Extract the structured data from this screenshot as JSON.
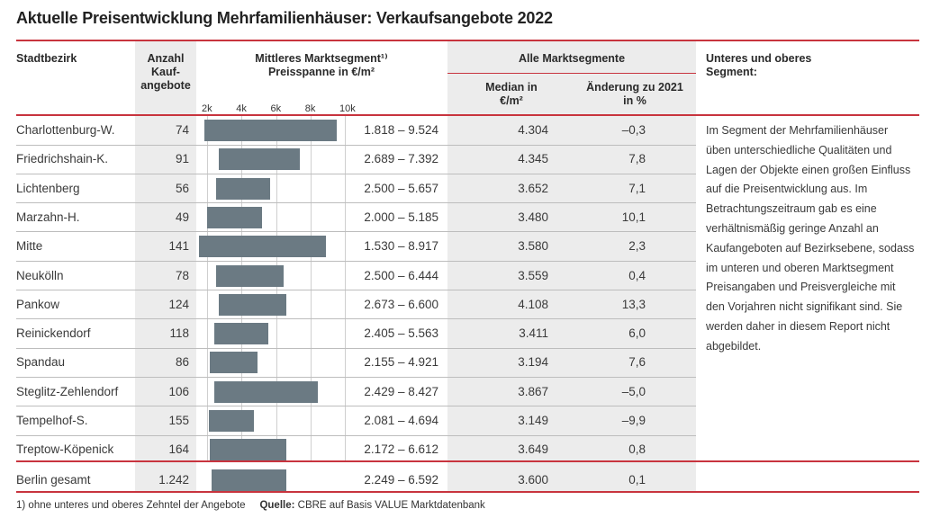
{
  "title": "Aktuelle Preisentwicklung Mehrfamilienhäuser: Verkaufsangebote 2022",
  "headers": {
    "district": "Stadtbezirk",
    "count": "Anzahl Kauf-angebote",
    "range_line1": "Mittleres Marktsegment¹⁾",
    "range_line2": "Preisspanne in €/m²",
    "all_segments": "Alle Marktsegmente",
    "median": "Median in €/m²",
    "change": "Änderung zu 2021 in %",
    "note": "Unteres und oberes Segment:"
  },
  "axis_ticks": [
    "2k",
    "4k",
    "6k",
    "8k",
    "10k"
  ],
  "rows": [
    {
      "name": "Charlottenburg-W.",
      "count": "74",
      "range": "1.818 – 9.524",
      "median": "4.304",
      "change": "–0,3"
    },
    {
      "name": "Friedrichshain-K.",
      "count": "91",
      "range": "2.689 – 7.392",
      "median": "4.345",
      "change": "7,8"
    },
    {
      "name": "Lichtenberg",
      "count": "56",
      "range": "2.500 – 5.657",
      "median": "3.652",
      "change": "7,1"
    },
    {
      "name": "Marzahn-H.",
      "count": "49",
      "range": "2.000 – 5.185",
      "median": "3.480",
      "change": "10,1"
    },
    {
      "name": "Mitte",
      "count": "141",
      "range": "1.530 – 8.917",
      "median": "3.580",
      "change": "2,3"
    },
    {
      "name": "Neukölln",
      "count": "78",
      "range": "2.500 – 6.444",
      "median": "3.559",
      "change": "0,4"
    },
    {
      "name": "Pankow",
      "count": "124",
      "range": "2.673 – 6.600",
      "median": "4.108",
      "change": "13,3"
    },
    {
      "name": "Reinickendorf",
      "count": "118",
      "range": "2.405 – 5.563",
      "median": "3.411",
      "change": "6,0"
    },
    {
      "name": "Spandau",
      "count": "86",
      "range": "2.155 – 4.921",
      "median": "3.194",
      "change": "7,6"
    },
    {
      "name": "Steglitz-Zehlendorf",
      "count": "106",
      "range": "2.429 – 8.427",
      "median": "3.867",
      "change": "–5,0"
    },
    {
      "name": "Tempelhof-S.",
      "count": "155",
      "range": "2.081 – 4.694",
      "median": "3.149",
      "change": "–9,9"
    },
    {
      "name": "Treptow-Köpenick",
      "count": "164",
      "range": "2.172 – 6.612",
      "median": "3.649",
      "change": "0,8"
    },
    {
      "name": "Berlin gesamt",
      "count": "1.242",
      "range": "2.249 – 6.592",
      "median": "3.600",
      "change": "0,1"
    }
  ],
  "chart_data": {
    "type": "bar",
    "categories": [
      "Charlottenburg-W.",
      "Friedrichshain-K.",
      "Lichtenberg",
      "Marzahn-H.",
      "Mitte",
      "Neukölln",
      "Pankow",
      "Reinickendorf",
      "Spandau",
      "Steglitz-Zehlendorf",
      "Tempelhof-S.",
      "Treptow-Köpenick",
      "Berlin gesamt"
    ],
    "ranges": [
      [
        1818,
        9524
      ],
      [
        2689,
        7392
      ],
      [
        2500,
        5657
      ],
      [
        2000,
        5185
      ],
      [
        1530,
        8917
      ],
      [
        2500,
        6444
      ],
      [
        2673,
        6600
      ],
      [
        2405,
        5563
      ],
      [
        2155,
        4921
      ],
      [
        2429,
        8427
      ],
      [
        2081,
        4694
      ],
      [
        2172,
        6612
      ],
      [
        2249,
        6592
      ]
    ],
    "xlim": [
      2000,
      10000
    ],
    "xticks": [
      "2k",
      "4k",
      "6k",
      "8k",
      "10k"
    ]
  },
  "note": "Im Segment der Mehrfamilienhäuser üben unterschiedliche Qualitäten und Lagen der Objekte einen großen Einfluss auf die Preisentwicklung aus. Im Betrachtungszeitraum gab es eine verhältnismäßig geringe Anzahl an Kaufangeboten auf Bezirksebene, sodass im unteren und oberen Marktsegment Preisangaben und Preisvergleiche mit den Vorjahren nicht signifikant sind. Sie werden daher in diesem Report nicht abgebildet.",
  "footer": {
    "footnote": "1) ohne unteres und oberes Zehntel der Angebote",
    "source_label": "Quelle:",
    "source": "CBRE auf Basis VALUE Marktdatenbank"
  },
  "colors": {
    "accent": "#c8343e",
    "bar": "#6b7a83",
    "gray": "#ececec"
  }
}
